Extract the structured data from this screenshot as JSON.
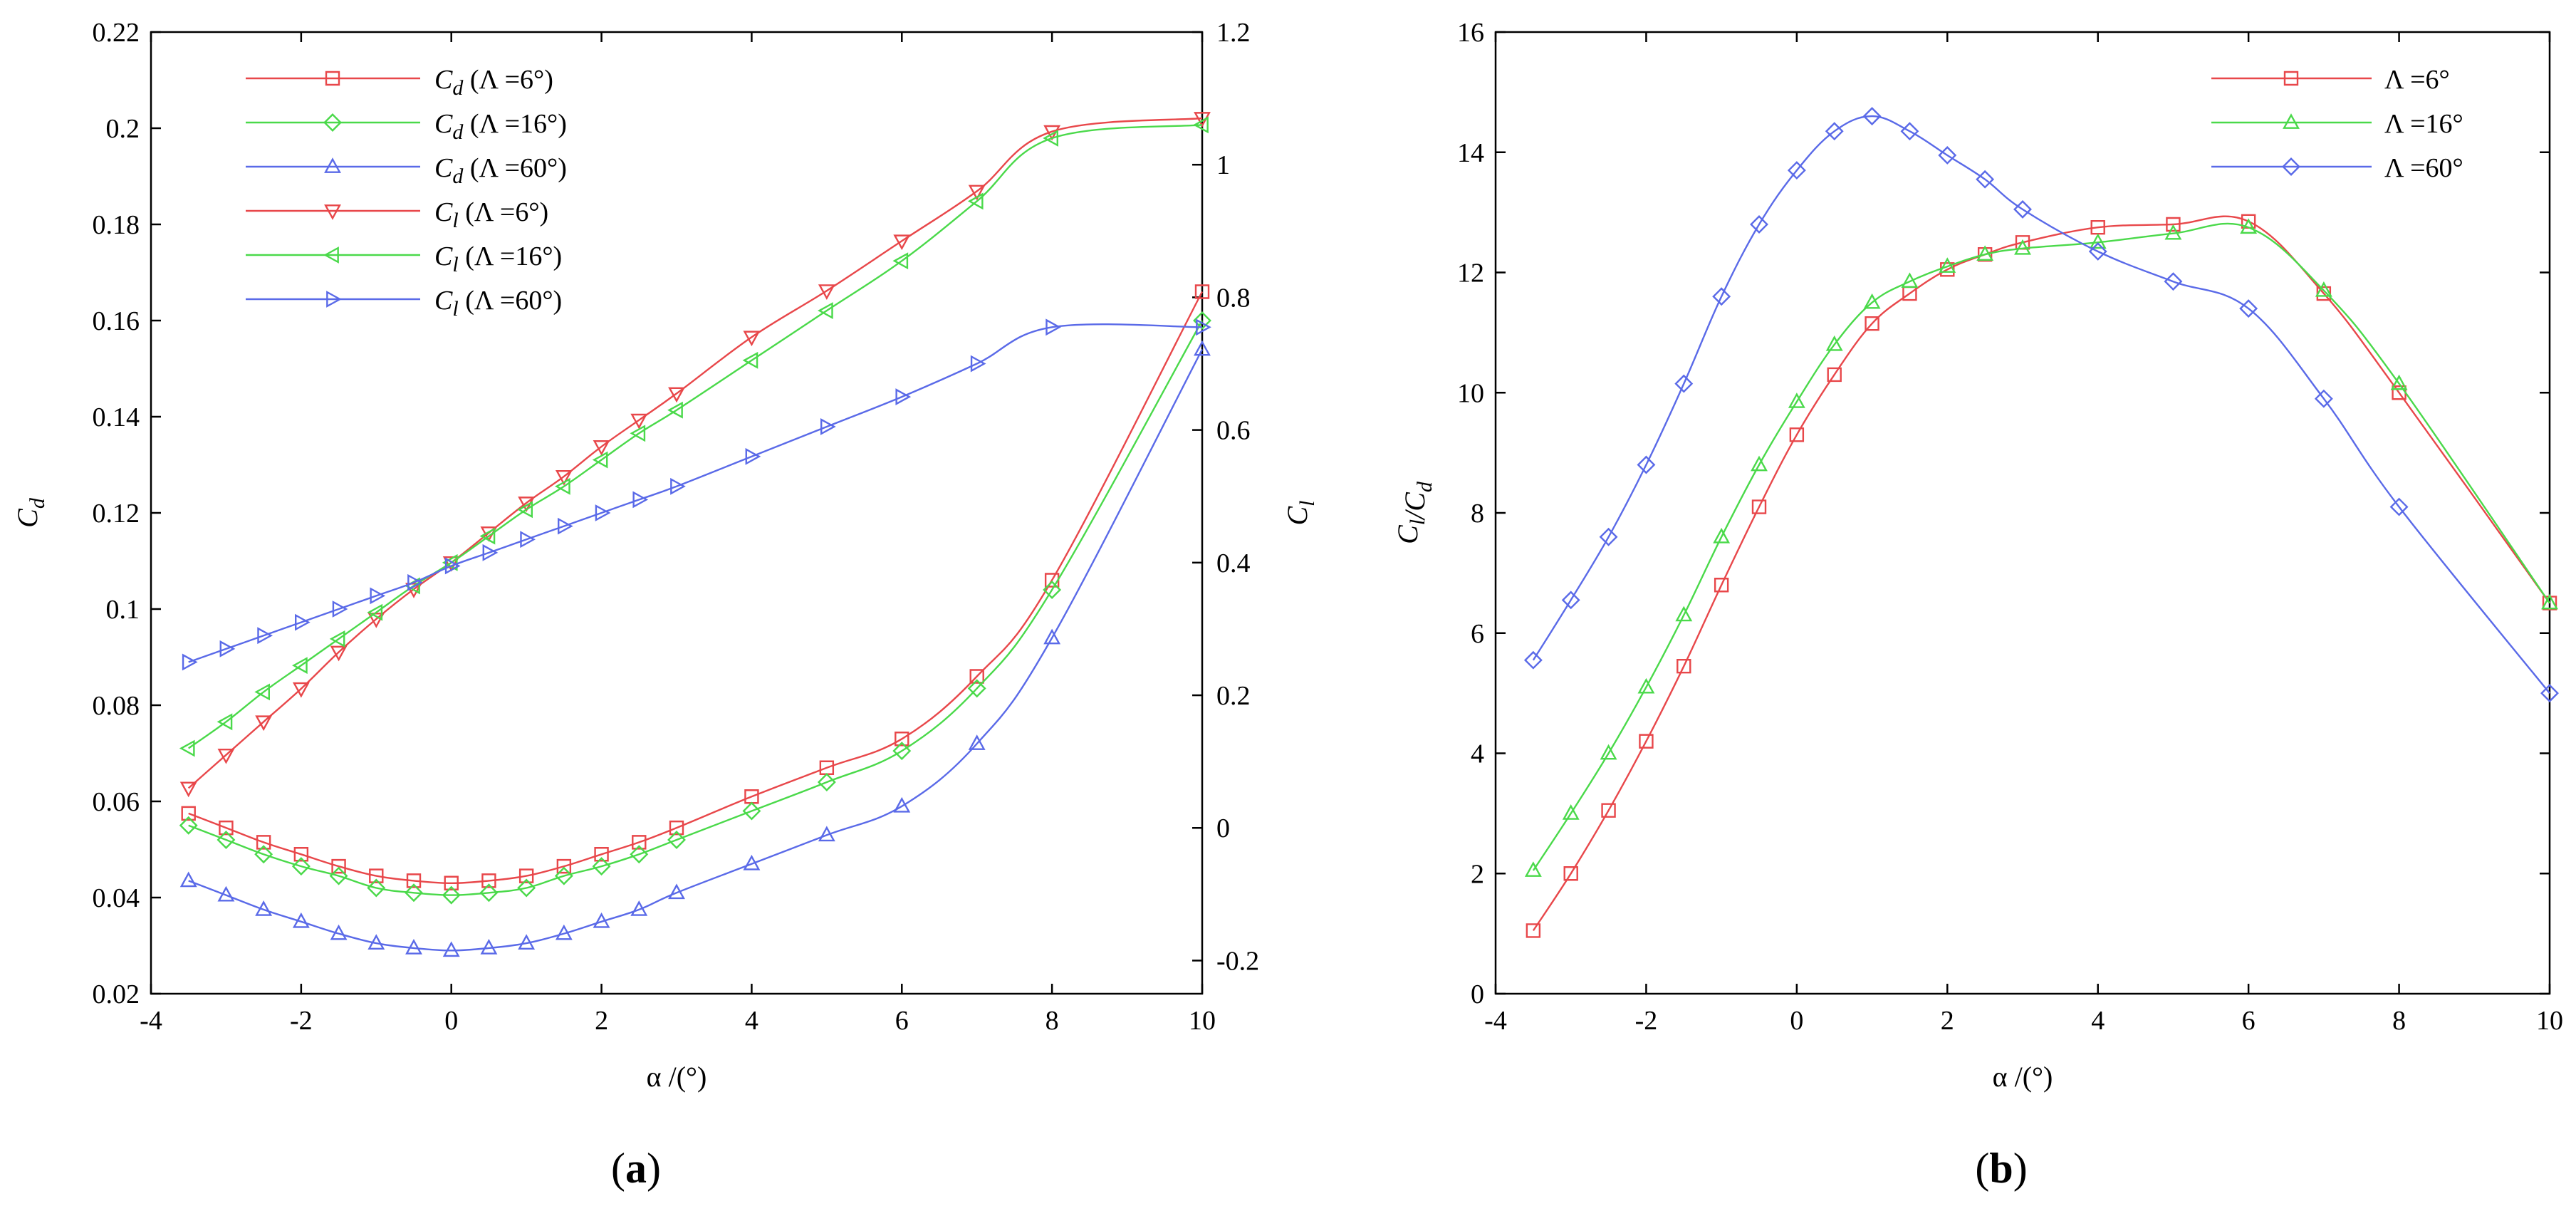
{
  "chart_data": [
    {
      "type": "line",
      "panel_label": "a",
      "xlabel": "α /(°)",
      "ylabel_left": "C_d",
      "ylabel_right": "C_l",
      "xlim": [
        -4,
        10
      ],
      "ylim_left": [
        0.02,
        0.22
      ],
      "ylim_right": [
        -0.25,
        1.2
      ],
      "xticks": [
        "-4",
        "-2",
        "0",
        "2",
        "4",
        "6",
        "8",
        "10"
      ],
      "yticks_left": [
        "0.02",
        "0.04",
        "0.06",
        "0.08",
        "0.1",
        "0.12",
        "0.14",
        "0.16",
        "0.18",
        "0.2",
        "0.22"
      ],
      "yticks_right": [
        "-0.2",
        "0",
        "0.2",
        "0.4",
        "0.6",
        "0.8",
        "1",
        "1.2"
      ],
      "legend_position": "top-left",
      "series": [
        {
          "name": "Cd (Λ =6°)",
          "sym": "d",
          "label_rest": " (Λ =6°)",
          "axis": "left",
          "color": "#e8474a",
          "marker": "square",
          "x": [
            -3.5,
            -3,
            -2.5,
            -2,
            -1.5,
            -1,
            -0.5,
            0,
            0.5,
            1,
            1.5,
            2,
            2.5,
            3,
            4,
            5,
            6,
            7,
            8,
            10
          ],
          "y": [
            0.0575,
            0.0545,
            0.0515,
            0.049,
            0.0465,
            0.0445,
            0.0435,
            0.043,
            0.0435,
            0.0445,
            0.0465,
            0.049,
            0.0515,
            0.0545,
            0.061,
            0.067,
            0.073,
            0.086,
            0.106,
            0.166
          ]
        },
        {
          "name": "Cd (Λ =16°)",
          "sym": "d",
          "label_rest": " (Λ =16°)",
          "axis": "left",
          "color": "#4ad94a",
          "marker": "diamond",
          "x": [
            -3.5,
            -3,
            -2.5,
            -2,
            -1.5,
            -1,
            -0.5,
            0,
            0.5,
            1,
            1.5,
            2,
            2.5,
            3,
            4,
            5,
            6,
            7,
            8,
            10
          ],
          "y": [
            0.055,
            0.052,
            0.049,
            0.0465,
            0.0445,
            0.042,
            0.041,
            0.0405,
            0.041,
            0.042,
            0.0445,
            0.0465,
            0.049,
            0.052,
            0.058,
            0.064,
            0.0705,
            0.0835,
            0.104,
            0.16
          ]
        },
        {
          "name": "Cd (Λ =60°)",
          "sym": "d",
          "label_rest": " (Λ =60°)",
          "axis": "left",
          "color": "#5a6ae8",
          "marker": "triangle-up",
          "x": [
            -3.5,
            -3,
            -2.5,
            -2,
            -1.5,
            -1,
            -0.5,
            0,
            0.5,
            1,
            1.5,
            2,
            2.5,
            3,
            4,
            5,
            6,
            7,
            8,
            10
          ],
          "y": [
            0.0435,
            0.0405,
            0.0375,
            0.035,
            0.0325,
            0.0305,
            0.0295,
            0.029,
            0.0295,
            0.0305,
            0.0325,
            0.035,
            0.0375,
            0.041,
            0.047,
            0.053,
            0.059,
            0.072,
            0.094,
            0.154
          ]
        },
        {
          "name": "Cl (Λ =6°)",
          "sym": "l",
          "label_rest": " (Λ =6°)",
          "axis": "right",
          "color": "#e8474a",
          "marker": "triangle-down",
          "x": [
            -3.5,
            -3,
            -2.5,
            -2,
            -1.5,
            -1,
            -0.5,
            0,
            0.5,
            1,
            1.5,
            2,
            2.5,
            3,
            4,
            5,
            6,
            7,
            8,
            10
          ],
          "y": [
            0.06,
            0.11,
            0.16,
            0.21,
            0.265,
            0.315,
            0.36,
            0.4,
            0.445,
            0.49,
            0.53,
            0.575,
            0.615,
            0.655,
            0.74,
            0.81,
            0.885,
            0.96,
            1.05,
            1.07
          ]
        },
        {
          "name": "Cl (Λ =16°)",
          "sym": "l",
          "label_rest": " (Λ =16°)",
          "axis": "right",
          "color": "#4ad94a",
          "marker": "triangle-left",
          "x": [
            -3.5,
            -3,
            -2.5,
            -2,
            -1.5,
            -1,
            -0.5,
            0,
            0.5,
            1,
            1.5,
            2,
            2.5,
            3,
            4,
            5,
            6,
            7,
            8,
            10
          ],
          "y": [
            0.12,
            0.16,
            0.205,
            0.245,
            0.285,
            0.325,
            0.365,
            0.4,
            0.44,
            0.48,
            0.515,
            0.555,
            0.595,
            0.63,
            0.705,
            0.78,
            0.855,
            0.945,
            1.04,
            1.06
          ]
        },
        {
          "name": "Cl (Λ =60°)",
          "sym": "l",
          "label_rest": " (Λ =60°)",
          "axis": "right",
          "color": "#5a6ae8",
          "marker": "triangle-right",
          "x": [
            -3.5,
            -3,
            -2.5,
            -2,
            -1.5,
            -1,
            -0.5,
            0,
            0.5,
            1,
            1.5,
            2,
            2.5,
            3,
            4,
            5,
            6,
            7,
            8,
            10
          ],
          "y": [
            0.25,
            0.27,
            0.29,
            0.31,
            0.33,
            0.35,
            0.37,
            0.395,
            0.415,
            0.435,
            0.455,
            0.475,
            0.495,
            0.515,
            0.56,
            0.605,
            0.65,
            0.7,
            0.755,
            0.755
          ]
        }
      ]
    },
    {
      "type": "line",
      "panel_label": "b",
      "xlabel": "α /(°)",
      "ylabel": "C_l/C_d",
      "xlim": [
        -4,
        10
      ],
      "ylim": [
        0,
        16
      ],
      "xticks": [
        "-4",
        "-2",
        "0",
        "2",
        "4",
        "6",
        "8",
        "10"
      ],
      "yticks": [
        "0",
        "2",
        "4",
        "6",
        "8",
        "10",
        "12",
        "14",
        "16"
      ],
      "legend_position": "top-right",
      "series": [
        {
          "name": "Λ =6°",
          "color": "#e8474a",
          "marker": "square",
          "x": [
            -3.5,
            -3,
            -2.5,
            -2,
            -1.5,
            -1,
            -0.5,
            0,
            0.5,
            1,
            1.5,
            2,
            2.5,
            3,
            4,
            5,
            6,
            7,
            8,
            10
          ],
          "y": [
            1.05,
            2.0,
            3.05,
            4.2,
            5.45,
            6.8,
            8.1,
            9.3,
            10.3,
            11.15,
            11.65,
            12.05,
            12.3,
            12.5,
            12.75,
            12.8,
            12.85,
            11.65,
            10.0,
            6.5
          ]
        },
        {
          "name": "Λ =16°",
          "color": "#4ad94a",
          "marker": "triangle-up",
          "x": [
            -3.5,
            -3,
            -2.5,
            -2,
            -1.5,
            -1,
            -0.5,
            0,
            0.5,
            1,
            1.5,
            2,
            2.5,
            3,
            4,
            5,
            6,
            7,
            8,
            10
          ],
          "y": [
            2.05,
            3.0,
            4.0,
            5.1,
            6.3,
            7.6,
            8.8,
            9.85,
            10.8,
            11.5,
            11.85,
            12.1,
            12.3,
            12.4,
            12.5,
            12.65,
            12.75,
            11.7,
            10.15,
            6.5
          ]
        },
        {
          "name": "Λ =60°",
          "color": "#5a6ae8",
          "marker": "diamond",
          "x": [
            -3.5,
            -3,
            -2.5,
            -2,
            -1.5,
            -1,
            -0.5,
            0,
            0.5,
            1,
            1.5,
            2,
            2.5,
            3,
            4,
            5,
            6,
            7,
            8,
            10
          ],
          "y": [
            5.55,
            6.55,
            7.6,
            8.8,
            10.15,
            11.6,
            12.8,
            13.7,
            14.35,
            14.6,
            14.35,
            13.95,
            13.55,
            13.05,
            12.35,
            11.85,
            11.4,
            9.9,
            8.1,
            5.0
          ]
        }
      ]
    }
  ]
}
